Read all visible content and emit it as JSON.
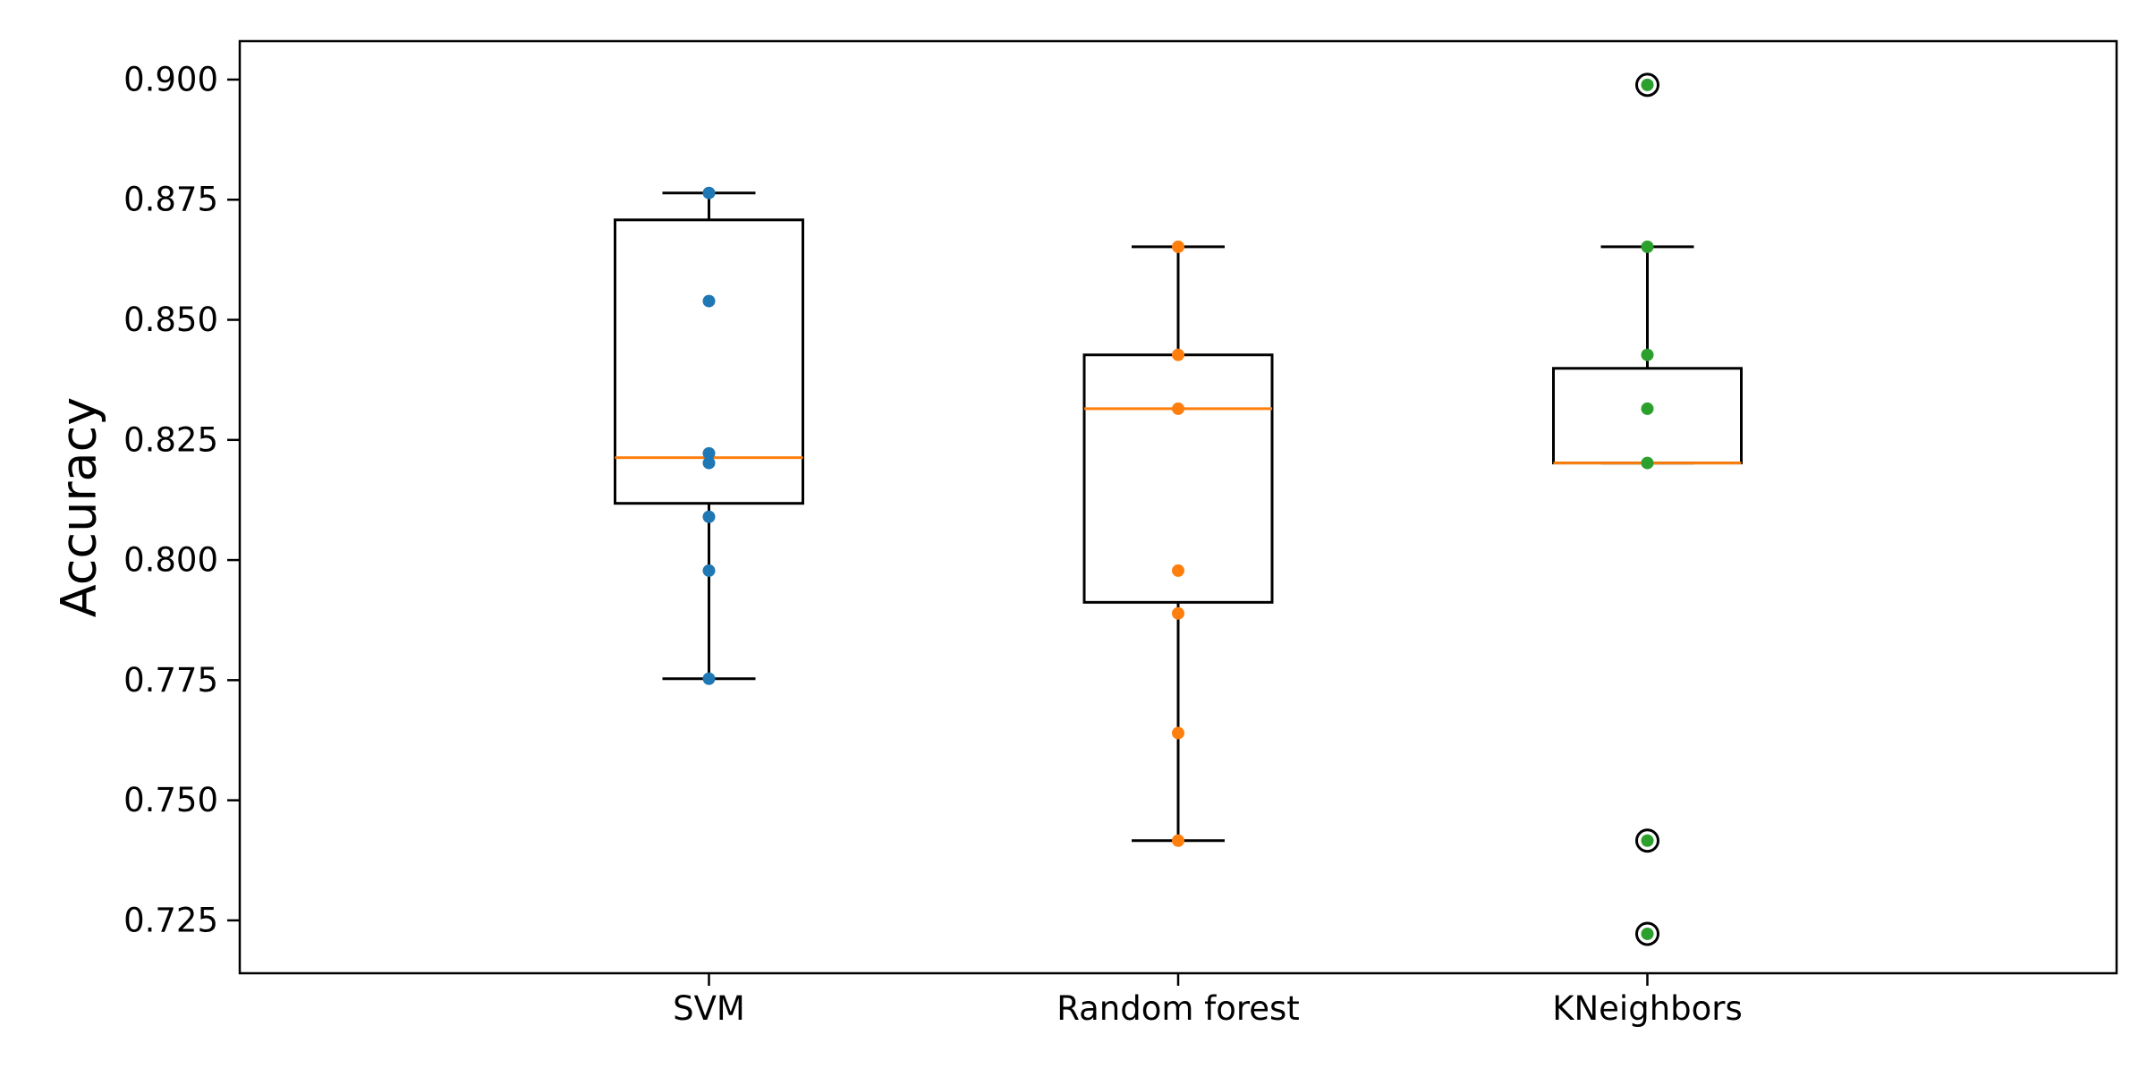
{
  "chart_data": {
    "type": "boxplot",
    "title": "",
    "xlabel": "",
    "ylabel": "Accuracy",
    "ylim": [
      0.714,
      0.908
    ],
    "grid": false,
    "yticks": [
      "0.725",
      "0.750",
      "0.775",
      "0.800",
      "0.825",
      "0.850",
      "0.875",
      "0.900"
    ],
    "ytick_values": [
      0.725,
      0.75,
      0.775,
      0.8,
      0.825,
      0.85,
      0.875,
      0.9
    ],
    "categories": [
      "SVM",
      "Random forest",
      "KNeighbors"
    ],
    "colors": {
      "box": "#000000",
      "median": "#ff7f0e",
      "points": [
        "#1f77b4",
        "#ff7f0e",
        "#2ca02c"
      ]
    },
    "series": [
      {
        "whisker_low": 0.7753,
        "q1": 0.8118,
        "median": 0.8213,
        "q3": 0.8708,
        "whisker_high": 0.8764,
        "outliers": [],
        "points": [
          0.8764,
          0.8539,
          0.8222,
          0.8202,
          0.809,
          0.7978,
          0.7753
        ]
      },
      {
        "whisker_low": 0.7416,
        "q1": 0.7912,
        "median": 0.8315,
        "q3": 0.8427,
        "whisker_high": 0.8652,
        "outliers": [],
        "points": [
          0.8652,
          0.8427,
          0.8315,
          0.7978,
          0.7889,
          0.764,
          0.7416
        ]
      },
      {
        "whisker_low": 0.8202,
        "q1": 0.8202,
        "median": 0.8202,
        "q3": 0.8399,
        "whisker_high": 0.8652,
        "outliers": [
          0.8989,
          0.7416,
          0.7222
        ],
        "points": [
          0.8989,
          0.8652,
          0.8427,
          0.8315,
          0.8202,
          0.7416,
          0.7222
        ]
      }
    ]
  }
}
